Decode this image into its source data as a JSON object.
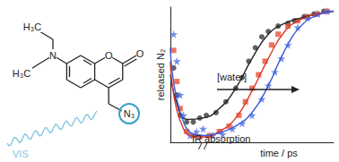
{
  "chart_data": {
    "type": "scatter",
    "x_label": "time / ps",
    "y_label": "released N₂",
    "annotations": [
      "[water]",
      "IR absorption"
    ],
    "xlim": [
      0,
      100
    ],
    "ylim": [
      0,
      1
    ],
    "tick_labels": false,
    "grid": false,
    "series": [
      {
        "type": "scatter",
        "marker": "circle",
        "color": "#3a3a3a",
        "values": [
          [
            2,
            0.55
          ],
          [
            4,
            0.35
          ],
          [
            6,
            0.2
          ],
          [
            10,
            0.15
          ],
          [
            14,
            0.15
          ],
          [
            18,
            0.18
          ],
          [
            22,
            0.2
          ],
          [
            28,
            0.22
          ],
          [
            34,
            0.3
          ],
          [
            40,
            0.4
          ],
          [
            44,
            0.48
          ],
          [
            48,
            0.6
          ],
          [
            52,
            0.7
          ],
          [
            56,
            0.78
          ],
          [
            60,
            0.82
          ],
          [
            66,
            0.86
          ],
          [
            72,
            0.88
          ],
          [
            76,
            0.9
          ],
          [
            82,
            0.93
          ],
          [
            88,
            0.95
          ],
          [
            94,
            0.97
          ]
        ]
      },
      {
        "type": "scatter",
        "marker": "square",
        "color": "#e8503a",
        "values": [
          [
            2,
            0.68
          ],
          [
            4,
            0.45
          ],
          [
            6,
            0.25
          ],
          [
            10,
            0.08
          ],
          [
            14,
            0.05
          ],
          [
            18,
            0.04
          ],
          [
            24,
            0.05
          ],
          [
            30,
            0.08
          ],
          [
            36,
            0.12
          ],
          [
            42,
            0.2
          ],
          [
            46,
            0.3
          ],
          [
            50,
            0.4
          ],
          [
            54,
            0.5
          ],
          [
            58,
            0.6
          ],
          [
            62,
            0.72
          ],
          [
            66,
            0.8
          ],
          [
            72,
            0.86
          ],
          [
            78,
            0.9
          ],
          [
            84,
            0.93
          ],
          [
            90,
            0.95
          ],
          [
            96,
            0.97
          ]
        ]
      },
      {
        "type": "scatter",
        "marker": "star",
        "color": "#4a6fe3",
        "values": [
          [
            2,
            0.8
          ],
          [
            4,
            0.6
          ],
          [
            6,
            0.35
          ],
          [
            8,
            0.2
          ],
          [
            12,
            0.05
          ],
          [
            16,
            0.08
          ],
          [
            20,
            0.1
          ],
          [
            26,
            0.05
          ],
          [
            32,
            0.06
          ],
          [
            38,
            0.1
          ],
          [
            44,
            0.14
          ],
          [
            50,
            0.2
          ],
          [
            56,
            0.32
          ],
          [
            60,
            0.42
          ],
          [
            64,
            0.52
          ],
          [
            68,
            0.62
          ],
          [
            72,
            0.72
          ],
          [
            78,
            0.85
          ],
          [
            84,
            0.92
          ],
          [
            90,
            0.95
          ],
          [
            96,
            0.97
          ]
        ]
      },
      {
        "type": "line",
        "line_style": "solid",
        "color": "#222222",
        "values": [
          [
            0,
            0.5
          ],
          [
            5,
            0.25
          ],
          [
            10,
            0.17
          ],
          [
            20,
            0.18
          ],
          [
            30,
            0.25
          ],
          [
            40,
            0.4
          ],
          [
            50,
            0.62
          ],
          [
            60,
            0.8
          ],
          [
            70,
            0.88
          ],
          [
            80,
            0.92
          ],
          [
            90,
            0.95
          ],
          [
            100,
            0.97
          ]
        ]
      },
      {
        "type": "line",
        "line_style": "solid",
        "color": "#d83a2a",
        "values": [
          [
            0,
            0.6
          ],
          [
            8,
            0.1
          ],
          [
            20,
            0.04
          ],
          [
            30,
            0.08
          ],
          [
            40,
            0.18
          ],
          [
            50,
            0.38
          ],
          [
            60,
            0.62
          ],
          [
            70,
            0.82
          ],
          [
            80,
            0.91
          ],
          [
            90,
            0.95
          ],
          [
            100,
            0.97
          ]
        ]
      },
      {
        "type": "line",
        "line_style": "solid",
        "color": "#3b5bdb",
        "values": [
          [
            0,
            0.7
          ],
          [
            8,
            0.15
          ],
          [
            20,
            0.05
          ],
          [
            30,
            0.07
          ],
          [
            40,
            0.12
          ],
          [
            50,
            0.22
          ],
          [
            60,
            0.42
          ],
          [
            70,
            0.68
          ],
          [
            80,
            0.86
          ],
          [
            90,
            0.94
          ],
          [
            100,
            0.97
          ]
        ]
      }
    ]
  },
  "molecule": {
    "amine": "N",
    "ring_oxygen": "O",
    "carbonyl_oxygen": "O",
    "azide": "N₃",
    "ethyl_upper": "H₃C",
    "ethyl_lower": "H₃C",
    "excitation": "VIS"
  }
}
